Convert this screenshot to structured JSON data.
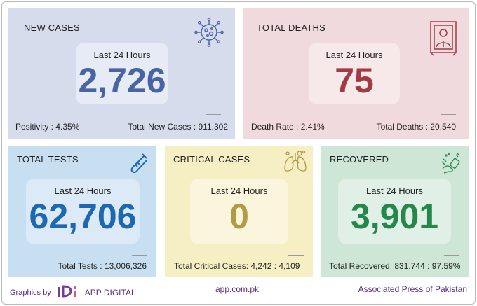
{
  "cards": {
    "new_cases": {
      "title": "NEW CASES",
      "label": "Last 24 Hours",
      "value": "2,726",
      "footer_left": "Positivity : 4.35%",
      "footer_right": "Total New Cases : 911,302",
      "icon": "virus-icon",
      "color": "#4a63a3"
    },
    "total_deaths": {
      "title": "TOTAL DEATHS",
      "label": "Last 24 Hours",
      "value": "75",
      "footer_left": "Death Rate : 2.41%",
      "footer_right": "Total Deaths : 20,540",
      "icon": "portrait-frame-icon",
      "color": "#a03a45"
    },
    "total_tests": {
      "title": "TOTAL TESTS",
      "label": "Last 24 Hours",
      "value": "62,706",
      "footer": "Total Tests : 13,006,326",
      "icon": "test-tube-icon",
      "color": "#1e67b1"
    },
    "critical_cases": {
      "title": "CRITICAL CASES",
      "label": "Last 24 Hours",
      "value": "0",
      "footer": "Total Critical Cases: 4,242  : 4,109",
      "icon": "lungs-icon",
      "color": "#b39a45"
    },
    "recovered": {
      "title": "RECOVERED",
      "label": "Last 24 Hours",
      "value": "3,901",
      "footer": "Total Recovered: 831,744 : 97.59%",
      "icon": "sanitizer-hands-icon",
      "color": "#26874b"
    }
  },
  "footer": {
    "graphics_by": "Graphics by",
    "brand": "APP DIGITAL",
    "url": "app.com.pk",
    "agency": "Associated Press of Pakistan"
  }
}
